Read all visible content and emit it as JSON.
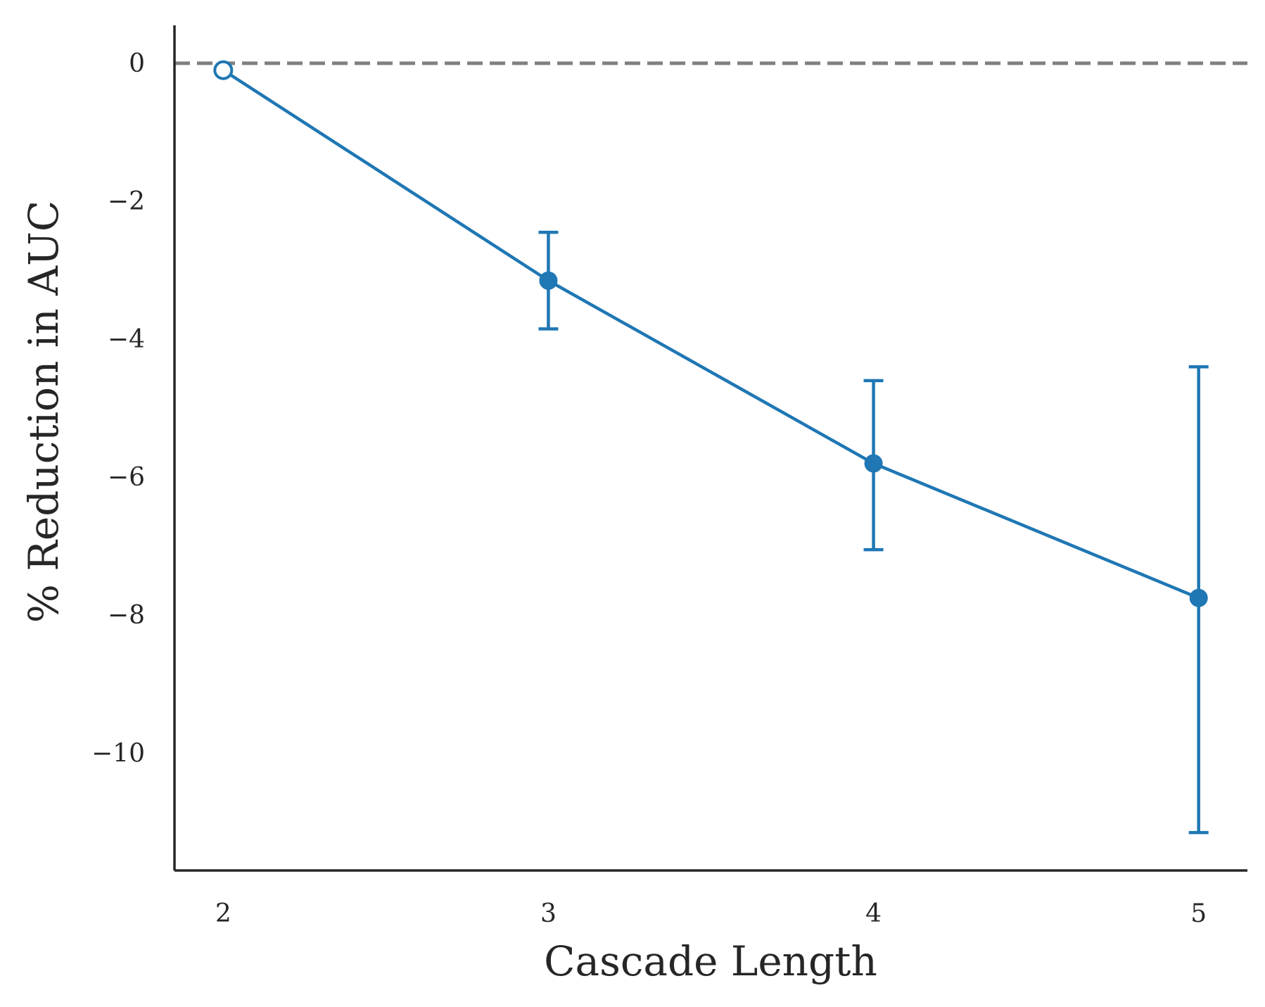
{
  "chart_data": {
    "type": "line",
    "title": "",
    "xlabel": "Cascade Length",
    "ylabel": "% Reduction in AUC",
    "x": [
      2,
      3,
      4,
      5
    ],
    "xticks": [
      "2",
      "3",
      "4",
      "5"
    ],
    "yticks": [
      "0",
      "−2",
      "−4",
      "−6",
      "−8",
      "−10"
    ],
    "ytick_values": [
      0,
      -2,
      -4,
      -6,
      -8,
      -10
    ],
    "xlim": [
      1.85,
      5.15
    ],
    "ylim": [
      -11.7,
      0.55
    ],
    "grid": false,
    "series": [
      {
        "values": [
          -0.1,
          -3.15,
          -5.8,
          -7.75
        ],
        "error_low": [
          -0.1,
          -3.85,
          -7.05,
          -11.15
        ],
        "error_high": [
          -0.1,
          -2.45,
          -4.6,
          -4.4
        ],
        "color": "#1f77b4",
        "hollow_points": [
          0
        ]
      }
    ],
    "reference_line": {
      "y": 0,
      "style": "dashed",
      "color": "#808080"
    }
  }
}
